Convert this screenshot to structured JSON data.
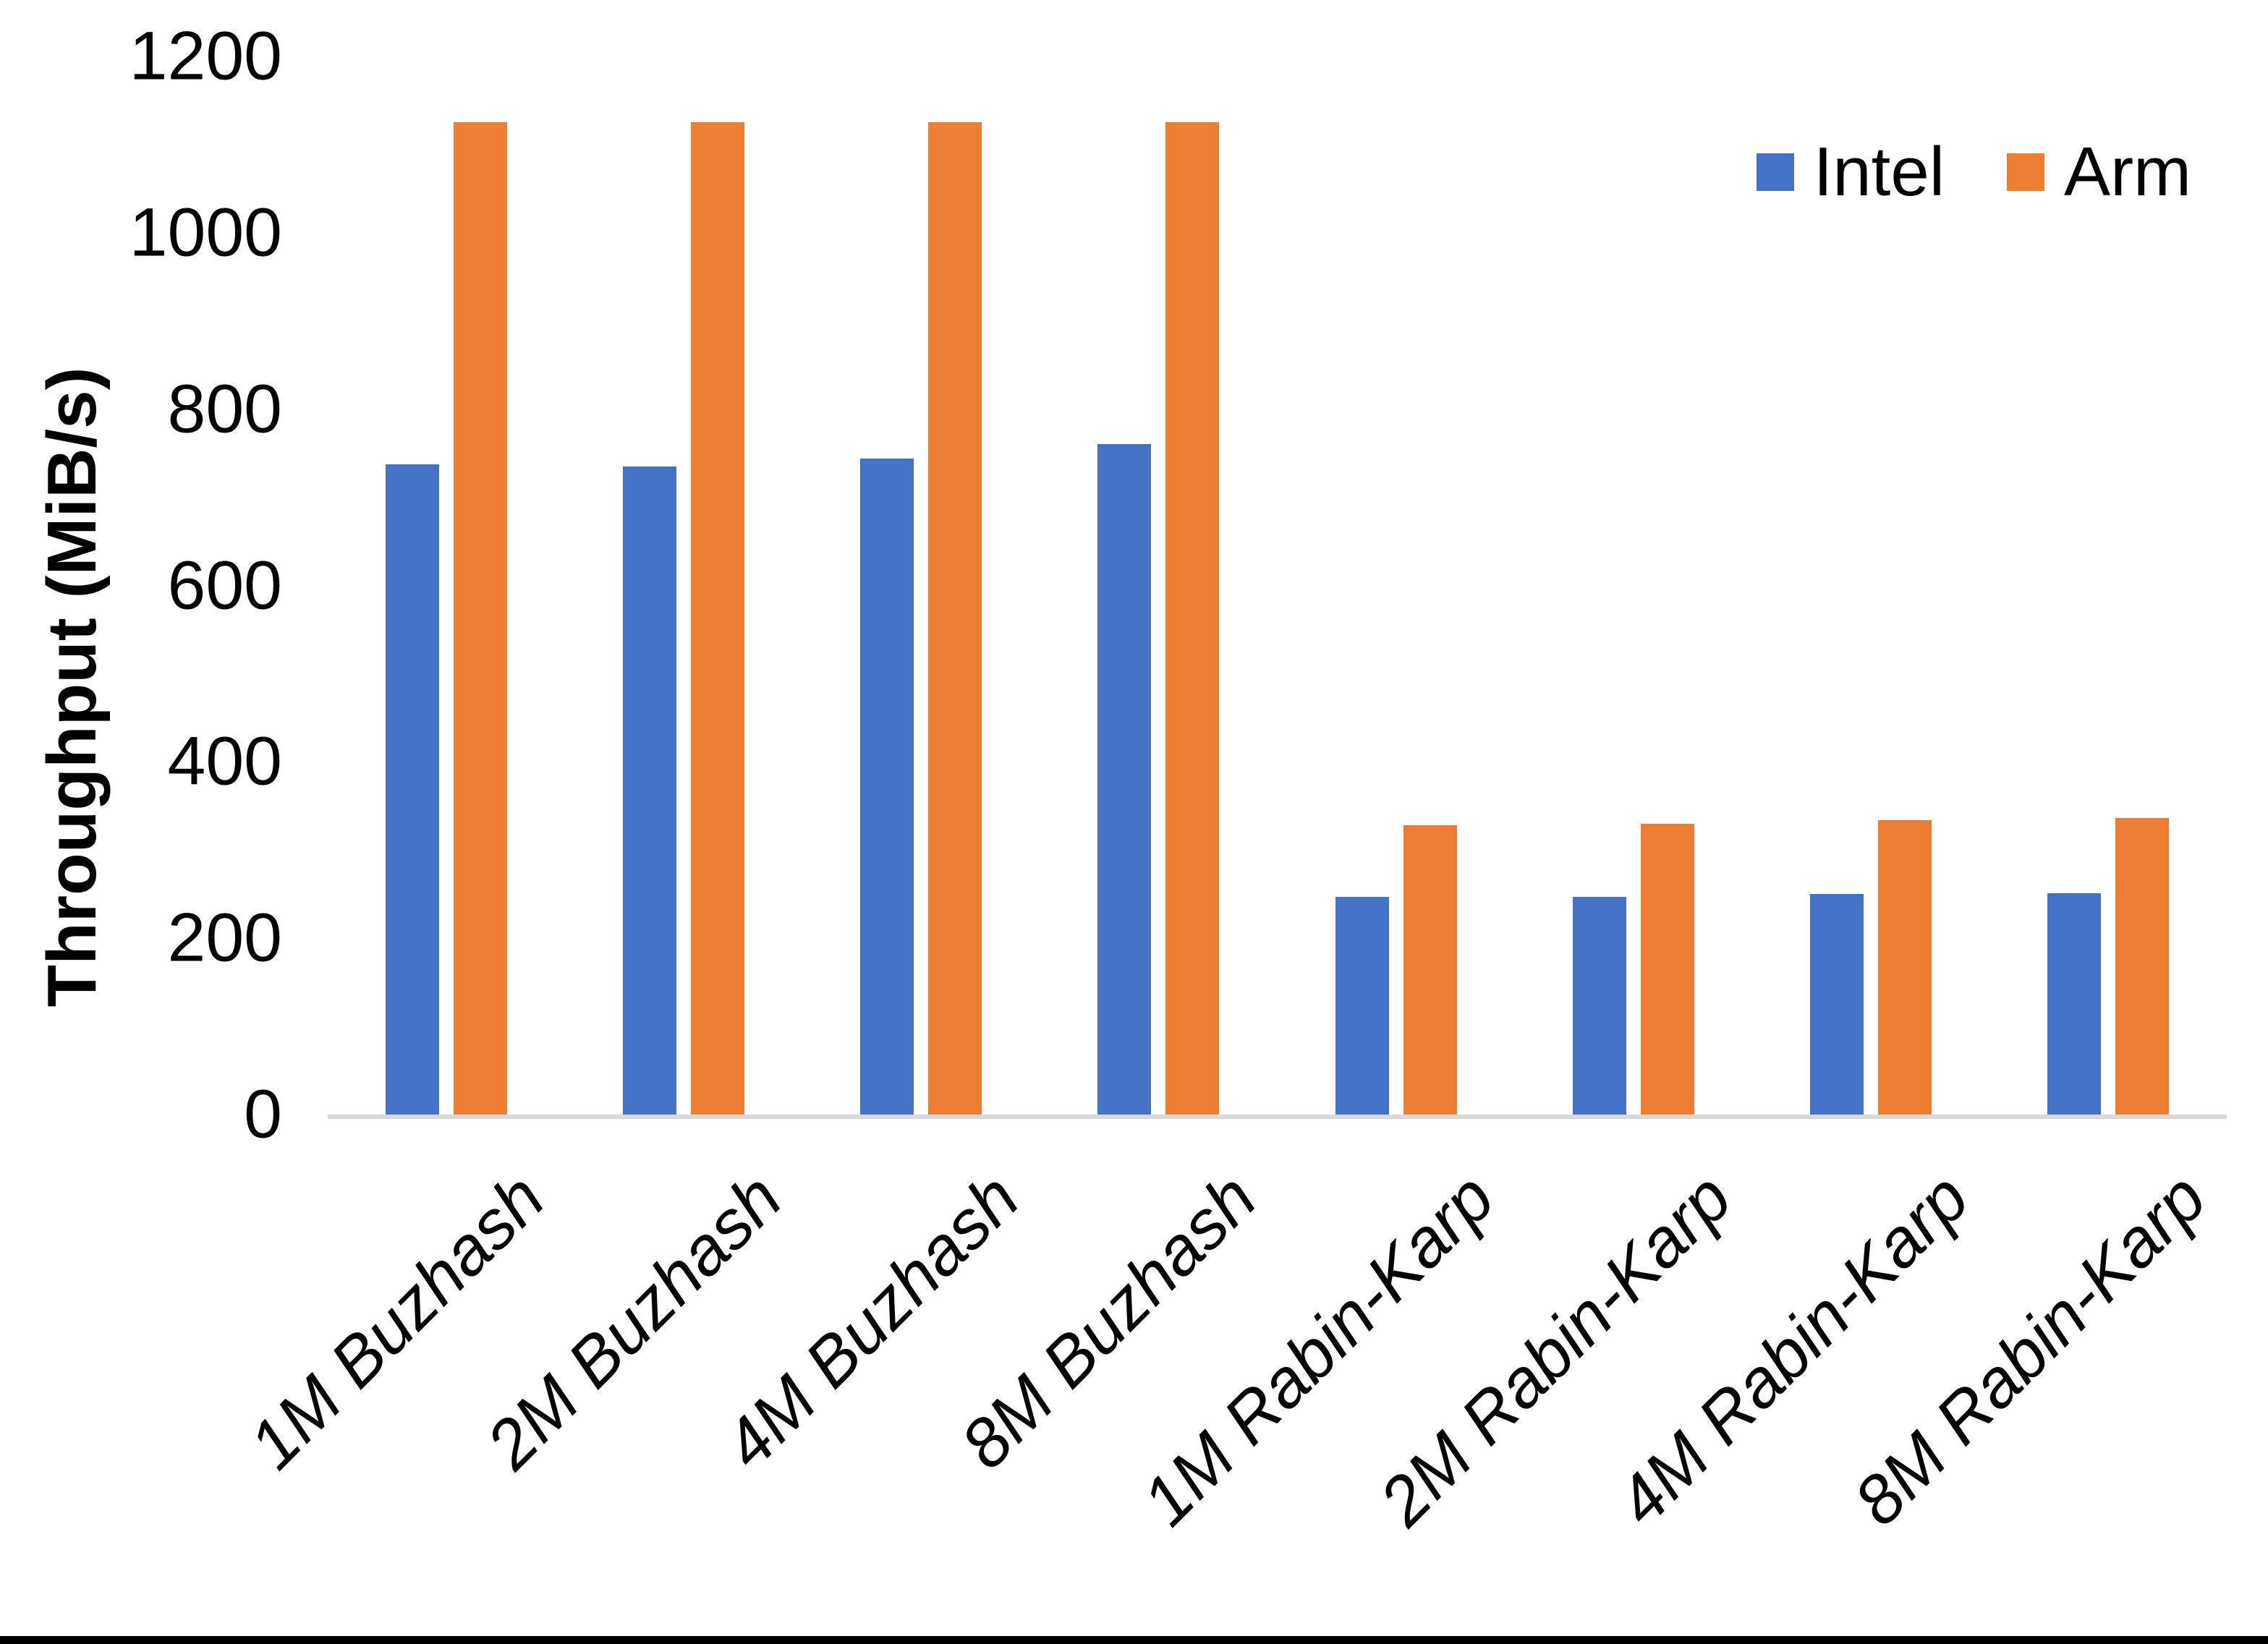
{
  "chart_data": {
    "type": "bar",
    "title": "",
    "xlabel": "",
    "ylabel": "Throughput (MiB/s)",
    "ylim": [
      0,
      1200
    ],
    "yticks": [
      0,
      200,
      400,
      600,
      800,
      1000,
      1200
    ],
    "grid": false,
    "legend_position": "top-right",
    "categories": [
      "1M Buzhash",
      "2M Buzhash",
      "4M Buzhash",
      "8M Buzhash",
      "1M Rabin-Karp",
      "2M Rabin-Karp",
      "4M Rabin-Karp",
      "8M Rabin-Karp"
    ],
    "series": [
      {
        "name": "Intel",
        "color": "#4472C4",
        "values": [
          737,
          735,
          744,
          760,
          247,
          247,
          250,
          251
        ]
      },
      {
        "name": "Arm",
        "color": "#ED7D31",
        "values": [
          1125,
          1125,
          1125,
          1125,
          328,
          330,
          334,
          336
        ]
      }
    ]
  },
  "legend": {
    "items": [
      {
        "label": "Intel",
        "color": "#4472C4"
      },
      {
        "label": "Arm",
        "color": "#ED7D31"
      }
    ]
  },
  "colors": {
    "axis_line": "#D9D9D9",
    "text": "#000000",
    "bottom_border": "#000000"
  }
}
